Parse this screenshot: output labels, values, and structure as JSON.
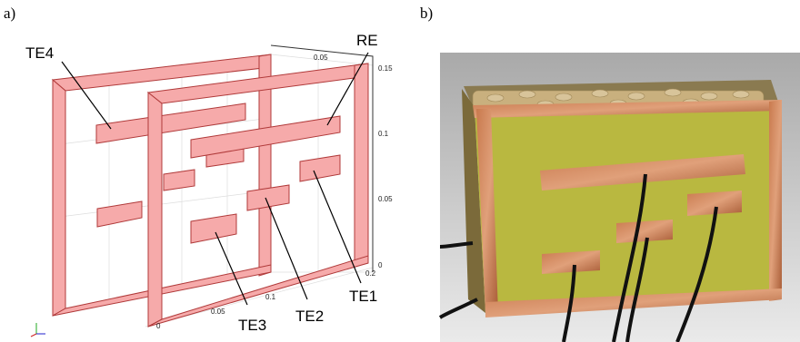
{
  "panel_a": {
    "tag": "a)",
    "labels": [
      "TE4",
      "RE",
      "TE1",
      "TE2",
      "TE3"
    ],
    "ticks_top": [
      "0.05"
    ],
    "ticks_right": [
      "0.15",
      "0.1",
      "0.05",
      "0"
    ],
    "ticks_bottom": [
      "0.2",
      "0.1",
      "0.05",
      "0"
    ]
  },
  "panel_b": {
    "tag": "b)"
  }
}
